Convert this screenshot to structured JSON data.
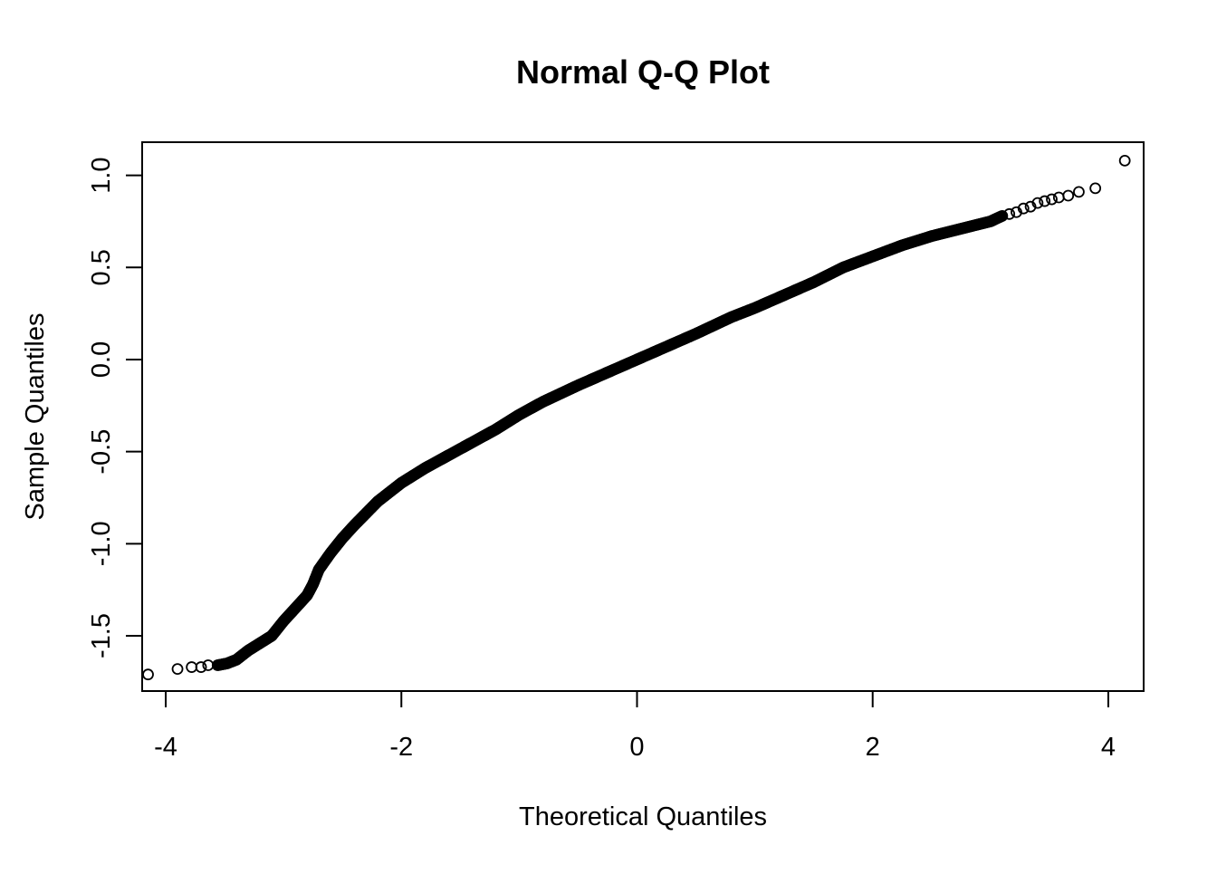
{
  "chart_data": {
    "type": "scatter",
    "title": "Normal Q-Q Plot",
    "xlabel": "Theoretical Quantiles",
    "ylabel": "Sample Quantiles",
    "xlim": [
      -4.2,
      4.3
    ],
    "ylim": [
      -1.8,
      1.18
    ],
    "x_ticks": [
      -4,
      -2,
      0,
      2,
      4
    ],
    "x_tick_labels": [
      "-4",
      "-2",
      "0",
      "2",
      "4"
    ],
    "y_ticks": [
      -1.5,
      -1.0,
      -0.5,
      0.0,
      0.5,
      1.0
    ],
    "y_tick_labels": [
      "-1.5",
      "-1.0",
      "-0.5",
      "0.0",
      "0.5",
      "1.0"
    ],
    "grid": false,
    "marker": "open-circle",
    "point_color": "#000000",
    "curve": [
      [
        -3.56,
        -1.66
      ],
      [
        -3.48,
        -1.65
      ],
      [
        -3.4,
        -1.63
      ],
      [
        -3.3,
        -1.58
      ],
      [
        -3.2,
        -1.54
      ],
      [
        -3.1,
        -1.5
      ],
      [
        -3.0,
        -1.42
      ],
      [
        -2.9,
        -1.35
      ],
      [
        -2.8,
        -1.28
      ],
      [
        -2.75,
        -1.22
      ],
      [
        -2.7,
        -1.14
      ],
      [
        -2.6,
        -1.05
      ],
      [
        -2.5,
        -0.97
      ],
      [
        -2.4,
        -0.9
      ],
      [
        -2.2,
        -0.77
      ],
      [
        -2.0,
        -0.67
      ],
      [
        -1.8,
        -0.59
      ],
      [
        -1.6,
        -0.52
      ],
      [
        -1.4,
        -0.45
      ],
      [
        -1.2,
        -0.38
      ],
      [
        -1.0,
        -0.3
      ],
      [
        -0.8,
        -0.23
      ],
      [
        -0.5,
        -0.14
      ],
      [
        -0.25,
        -0.07
      ],
      [
        0.0,
        0.0
      ],
      [
        0.25,
        0.07
      ],
      [
        0.5,
        0.14
      ],
      [
        0.8,
        0.23
      ],
      [
        1.0,
        0.28
      ],
      [
        1.25,
        0.35
      ],
      [
        1.5,
        0.42
      ],
      [
        1.75,
        0.5
      ],
      [
        2.0,
        0.56
      ],
      [
        2.25,
        0.62
      ],
      [
        2.5,
        0.67
      ],
      [
        2.75,
        0.71
      ],
      [
        3.0,
        0.75
      ],
      [
        3.1,
        0.78
      ]
    ],
    "tail_points": [
      [
        -4.15,
        -1.71
      ],
      [
        -3.9,
        -1.68
      ],
      [
        -3.78,
        -1.67
      ],
      [
        -3.7,
        -1.67
      ],
      [
        -3.64,
        -1.66
      ],
      [
        3.16,
        0.79
      ],
      [
        3.22,
        0.8
      ],
      [
        3.28,
        0.82
      ],
      [
        3.34,
        0.83
      ],
      [
        3.4,
        0.85
      ],
      [
        3.46,
        0.86
      ],
      [
        3.52,
        0.87
      ],
      [
        3.58,
        0.88
      ],
      [
        3.66,
        0.89
      ],
      [
        3.75,
        0.91
      ],
      [
        3.89,
        0.93
      ],
      [
        4.14,
        1.08
      ]
    ]
  }
}
